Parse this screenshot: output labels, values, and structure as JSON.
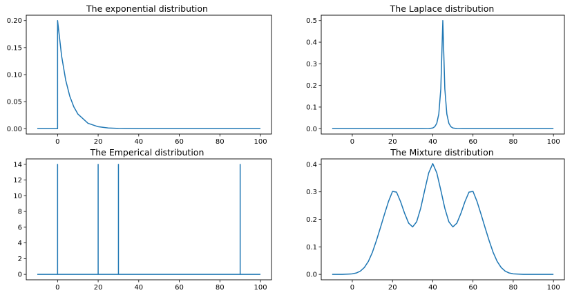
{
  "figure": {
    "background": "#ffffff"
  },
  "chart_data": [
    {
      "id": "exponential",
      "type": "line",
      "title": "The exponential distribution",
      "xlabel": "",
      "ylabel": "",
      "xlim": [
        -10,
        100
      ],
      "ylim": [
        0,
        0.2
      ],
      "xticks": [
        0,
        20,
        40,
        60,
        80,
        100
      ],
      "yticks": [
        0.0,
        0.05,
        0.1,
        0.15,
        0.2
      ],
      "xtick_labels": [
        "0",
        "20",
        "40",
        "60",
        "80",
        "100"
      ],
      "ytick_labels": [
        "0.00",
        "0.05",
        "0.10",
        "0.15",
        "0.20"
      ],
      "series": [
        {
          "color": "#1f77b4",
          "x": [
            -10,
            -5,
            0,
            0,
            2,
            4,
            6,
            8,
            10,
            15,
            20,
            25,
            30,
            40,
            50,
            60,
            80,
            100
          ],
          "y": [
            0,
            0,
            0,
            0.2,
            0.134,
            0.0899,
            0.0602,
            0.0404,
            0.0271,
            0.00996,
            0.00366,
            0.00135,
            0.000496,
            6.7e-05,
            9e-06,
            0,
            0,
            0
          ]
        }
      ]
    },
    {
      "id": "laplace",
      "type": "line",
      "title": "The Laplace distribution",
      "xlabel": "",
      "ylabel": "",
      "xlim": [
        -10,
        100
      ],
      "ylim": [
        0,
        0.5
      ],
      "xticks": [
        0,
        20,
        40,
        60,
        80,
        100
      ],
      "yticks": [
        0.0,
        0.1,
        0.2,
        0.3,
        0.4,
        0.5
      ],
      "xtick_labels": [
        "0",
        "20",
        "40",
        "60",
        "80",
        "100"
      ],
      "ytick_labels": [
        "0.0",
        "0.1",
        "0.2",
        "0.3",
        "0.4",
        "0.5"
      ],
      "series": [
        {
          "color": "#1f77b4",
          "x": [
            -10,
            20,
            35,
            38,
            40,
            41,
            42,
            43,
            44,
            45,
            46,
            47,
            48,
            49,
            50,
            52,
            55,
            70,
            100
          ],
          "y": [
            0,
            0,
            2e-05,
            0.0005,
            0.0034,
            0.0092,
            0.0249,
            0.0677,
            0.184,
            0.5,
            0.184,
            0.0677,
            0.0249,
            0.0092,
            0.0034,
            0.0005,
            2e-05,
            0,
            0
          ]
        }
      ]
    },
    {
      "id": "empirical",
      "type": "line",
      "title": "The Emperical distribution",
      "xlabel": "",
      "ylabel": "",
      "xlim": [
        -10,
        100
      ],
      "ylim": [
        0,
        14
      ],
      "xticks": [
        0,
        20,
        40,
        60,
        80,
        100
      ],
      "yticks": [
        0,
        2,
        4,
        6,
        8,
        10,
        12,
        14
      ],
      "xtick_labels": [
        "0",
        "20",
        "40",
        "60",
        "80",
        "100"
      ],
      "ytick_labels": [
        "0",
        "2",
        "4",
        "6",
        "8",
        "10",
        "12",
        "14"
      ],
      "series": [
        {
          "color": "#1f77b4",
          "x": [
            -10,
            0,
            0,
            0,
            20,
            20,
            20,
            30,
            30,
            30,
            90,
            90,
            90,
            100
          ],
          "y": [
            0,
            0,
            14,
            0,
            0,
            14,
            0,
            0,
            14,
            0,
            0,
            14,
            0,
            0
          ]
        }
      ]
    },
    {
      "id": "mixture",
      "type": "line",
      "title": "The Mixture distribution",
      "xlabel": "",
      "ylabel": "",
      "xlim": [
        -10,
        100
      ],
      "ylim": [
        0,
        0.4
      ],
      "xticks": [
        0,
        20,
        40,
        60,
        80,
        100
      ],
      "yticks": [
        0.0,
        0.1,
        0.2,
        0.3,
        0.4
      ],
      "xtick_labels": [
        "0",
        "20",
        "40",
        "60",
        "80",
        "100"
      ],
      "ytick_labels": [
        "0.0",
        "0.1",
        "0.2",
        "0.3",
        "0.4"
      ],
      "series": [
        {
          "color": "#1f77b4",
          "x": [
            -10,
            -5,
            0,
            2,
            4,
            6,
            8,
            10,
            12,
            14,
            16,
            18,
            20,
            22,
            24,
            26,
            28,
            30,
            32,
            34,
            36,
            38,
            40,
            42,
            44,
            46,
            48,
            50,
            52,
            54,
            56,
            58,
            60,
            62,
            64,
            66,
            68,
            70,
            72,
            74,
            76,
            78,
            80,
            85,
            90,
            100
          ],
          "y": [
            0,
            0.0001,
            0.0018,
            0.0049,
            0.0118,
            0.025,
            0.0473,
            0.0803,
            0.1231,
            0.1701,
            0.2187,
            0.2651,
            0.3017,
            0.2989,
            0.2644,
            0.2221,
            0.1864,
            0.1726,
            0.1912,
            0.2403,
            0.306,
            0.3692,
            0.4027,
            0.3692,
            0.306,
            0.2403,
            0.1912,
            0.1726,
            0.1864,
            0.2221,
            0.2644,
            0.2989,
            0.3017,
            0.2651,
            0.2187,
            0.1701,
            0.1231,
            0.0803,
            0.0473,
            0.025,
            0.0118,
            0.0049,
            0.0018,
            0.0001,
            0,
            0
          ]
        }
      ]
    }
  ]
}
